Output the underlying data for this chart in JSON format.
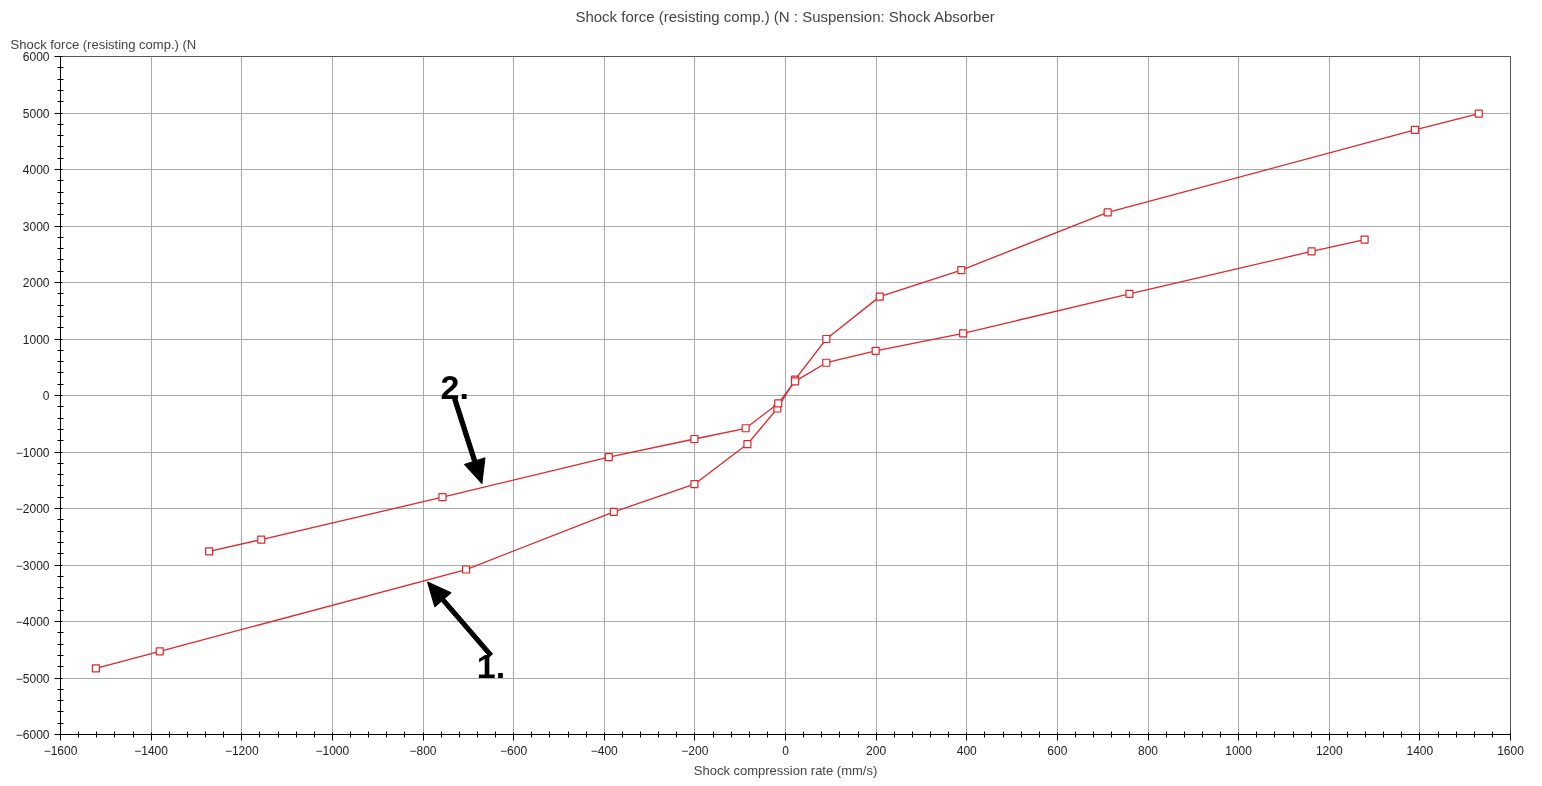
{
  "chart_data": {
    "type": "line",
    "title": "Shock force (resisting comp.) (N : Suspension: Shock Absorber",
    "xlabel": "Shock compression rate (mm/s)",
    "ylabel": "Shock force (resisting comp.) (N",
    "series": [
      {
        "color": "#e0262b",
        "x": [
          -1522,
          -1381,
          -705,
          -379,
          -201,
          -84,
          -18,
          21,
          90,
          208,
          388,
          711,
          1389,
          1530
        ],
        "values": [
          -4830,
          -4530,
          -3080,
          -2060,
          -1570,
          -860,
          -230,
          280,
          1000,
          1750,
          2220,
          3240,
          4700,
          4990
        ]
      },
      {
        "color": "#e0262b",
        "x": [
          -1272,
          -1157,
          -757,
          -390,
          -201,
          -88,
          -16,
          21,
          90,
          199,
          392,
          759,
          1161,
          1278
        ],
        "values": [
          -2760,
          -2550,
          -1800,
          -1090,
          -770,
          -580,
          -140,
          250,
          580,
          790,
          1100,
          1800,
          2550,
          2760
        ]
      }
    ],
    "annotations": [
      {
        "text": "2.",
        "x": -670,
        "y": -1560
      },
      {
        "text": "1.",
        "x": -790,
        "y": -3300
      }
    ],
    "xlim": [
      -1600,
      1600
    ],
    "xticks": [
      -1600,
      -1400,
      -1200,
      -1000,
      -800,
      -600,
      -400,
      -200,
      0,
      200,
      400,
      600,
      800,
      1000,
      1200,
      1400,
      1600
    ],
    "ylim": [
      -6000,
      6000
    ],
    "yticks": [
      -6000,
      -5000,
      -4000,
      -3000,
      -2000,
      -1000,
      0,
      1000,
      2000,
      3000,
      4000,
      5000,
      6000
    ],
    "grid": true,
    "marker": "square",
    "line_style": "solid"
  }
}
